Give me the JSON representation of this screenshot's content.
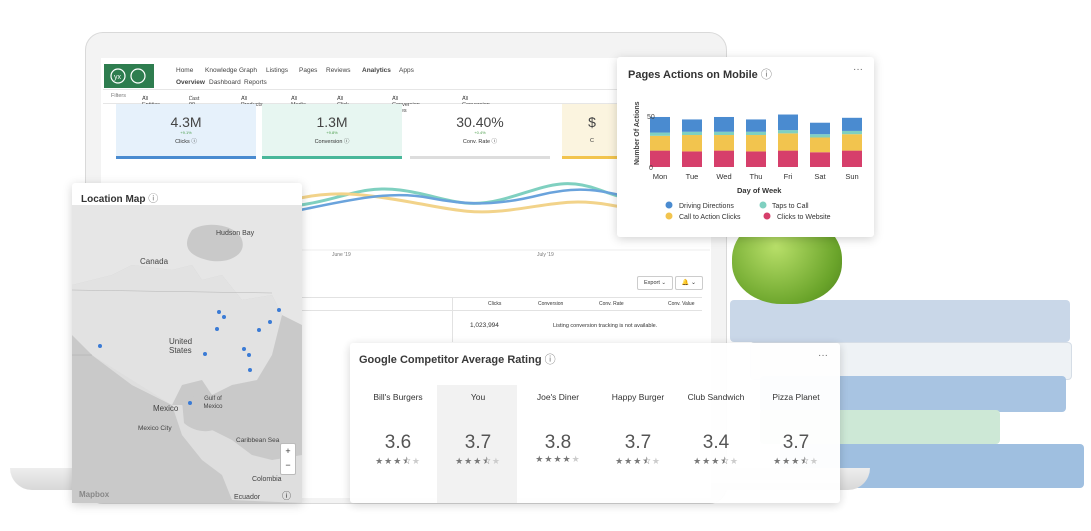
{
  "nav": {
    "top": [
      "Home",
      "Knowledge Graph",
      "Listings",
      "Pages",
      "Reviews",
      "Analytics",
      "Apps"
    ],
    "sub": [
      "Overview",
      "Dashboard",
      "Reports"
    ]
  },
  "filters": [
    "Filters",
    "All Entities",
    "Last 90 Days",
    "All Products",
    "All Media",
    "All Click Types",
    "All Conversion Types",
    "All Conversion Actions"
  ],
  "kpis": [
    {
      "value": "4.3M",
      "delta": "+9.1%",
      "label": "Clicks ⓘ"
    },
    {
      "value": "1.3M",
      "delta": "+9.8%",
      "label": "Conversion ⓘ"
    },
    {
      "value": "30.40%",
      "delta": "+0.4%",
      "label": "Conv. Rate ⓘ"
    },
    {
      "value": "$",
      "delta": "",
      "label": "C"
    }
  ],
  "line_dates": [
    "June '19",
    "July '19"
  ],
  "table": {
    "export_label": "Export",
    "headers": [
      "Clicks",
      "Conversion",
      "Conv. Rate",
      "Conv. Value"
    ],
    "row_value": "1,023,994",
    "row_note": "Listing conversion tracking is not available."
  },
  "map": {
    "title": "Location Map",
    "labels": [
      "Hudson Bay",
      "Canada",
      "United States",
      "Gulf of Mexico",
      "Mexico",
      "Mexico City",
      "Caribbean Sea",
      "Colombia",
      "Ecuador"
    ],
    "attribution": "Mapbox",
    "zoom_in": "+",
    "zoom_out": "−"
  },
  "chart_data": [
    {
      "type": "bar",
      "title": "Pages Actions on Mobile",
      "xlabel": "Day of Week",
      "ylabel": "Number Of Actions",
      "categories": [
        "Mon",
        "Tue",
        "Wed",
        "Thu",
        "Fri",
        "Sat",
        "Sun"
      ],
      "yticks": [
        0,
        50
      ],
      "stacked": true,
      "series": [
        {
          "name": "Clicks to Website",
          "color": "#d63f6b",
          "values": [
            20,
            19,
            20,
            19,
            20,
            18,
            20
          ]
        },
        {
          "name": "Call to Action Clicks",
          "color": "#f2c44e",
          "values": [
            18,
            20,
            19,
            20,
            21,
            18,
            20
          ]
        },
        {
          "name": "Taps to Call",
          "color": "#7fd0c0",
          "values": [
            4,
            4,
            4,
            4,
            4,
            4,
            4
          ]
        },
        {
          "name": "Driving Directions",
          "color": "#4a8bd0",
          "values": [
            19,
            15,
            18,
            15,
            19,
            14,
            16
          ]
        }
      ],
      "legend_order": [
        "Driving Directions",
        "Taps to Call",
        "Call to Action Clicks",
        "Clicks to Website"
      ]
    }
  ],
  "competitor": {
    "title": "Google Competitor Average Rating",
    "items": [
      {
        "name": "Bill's Burgers",
        "rating": "3.6",
        "stars": 3.5
      },
      {
        "name": "You",
        "rating": "3.7",
        "stars": 3.5
      },
      {
        "name": "Joe's Diner",
        "rating": "3.8",
        "stars": 4
      },
      {
        "name": "Happy Burger",
        "rating": "3.7",
        "stars": 3.5
      },
      {
        "name": "Club Sandwich",
        "rating": "3.4",
        "stars": 3.5
      },
      {
        "name": "Pizza Planet",
        "rating": "3.7",
        "stars": 3.5
      }
    ]
  }
}
